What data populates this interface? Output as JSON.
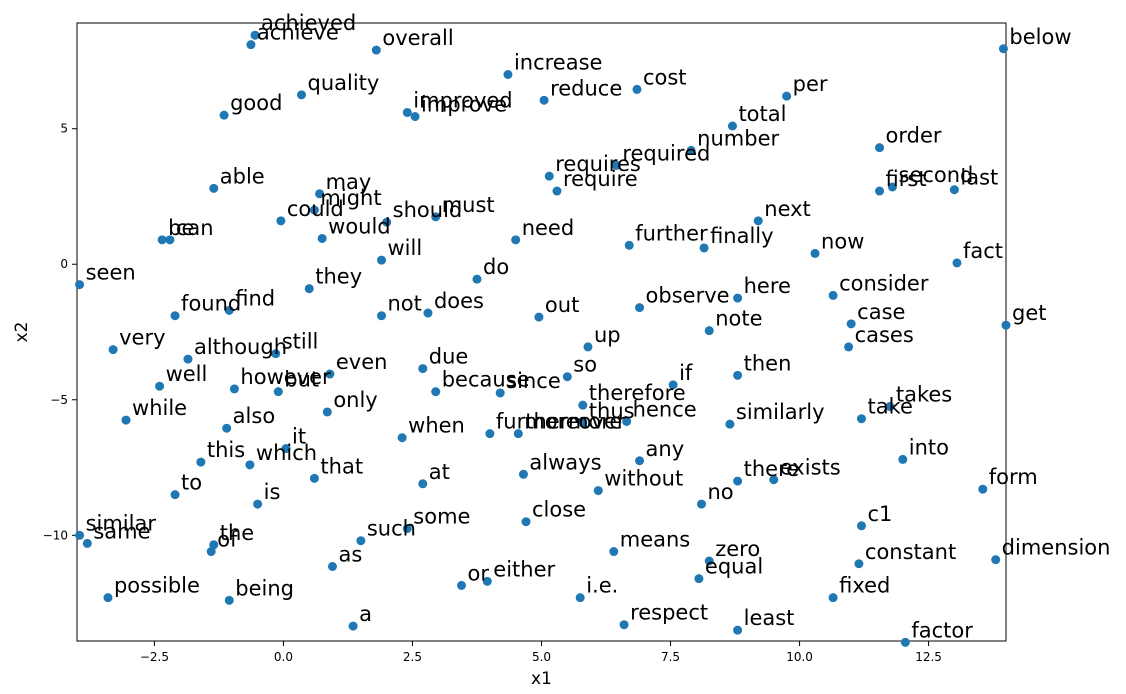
{
  "chart_data": {
    "type": "scatter",
    "title": "",
    "xlabel": "x1",
    "ylabel": "x2",
    "xlim": [
      -4.0,
      14.0
    ],
    "ylim": [
      -13.9,
      8.9
    ],
    "xticks": [
      -2.5,
      0.0,
      2.5,
      5.0,
      7.5,
      10.0,
      12.5
    ],
    "xtick_labels": [
      "−2.5",
      "0.0",
      "2.5",
      "5.0",
      "7.5",
      "10.0",
      "12.5"
    ],
    "yticks": [
      -10,
      -5,
      0,
      5
    ],
    "ytick_labels": [
      "−10",
      "−5",
      "0",
      "5"
    ],
    "grid": false,
    "point_color": "#1f77b4",
    "points": [
      {
        "label": "achieved",
        "x": -0.55,
        "y": 8.45
      },
      {
        "label": "achieve",
        "x": -0.63,
        "y": 8.1
      },
      {
        "label": "overall",
        "x": 1.8,
        "y": 7.9
      },
      {
        "label": "increase",
        "x": 4.35,
        "y": 7.0
      },
      {
        "label": "cost",
        "x": 6.85,
        "y": 6.45
      },
      {
        "label": "below",
        "x": 13.95,
        "y": 7.95
      },
      {
        "label": "per",
        "x": 9.75,
        "y": 6.2
      },
      {
        "label": "quality",
        "x": 0.35,
        "y": 6.25
      },
      {
        "label": "reduce",
        "x": 5.05,
        "y": 6.05
      },
      {
        "label": "good",
        "x": -1.15,
        "y": 5.5
      },
      {
        "label": "improved",
        "x": 2.4,
        "y": 5.6
      },
      {
        "label": "improve",
        "x": 2.55,
        "y": 5.45
      },
      {
        "label": "total",
        "x": 8.7,
        "y": 5.1
      },
      {
        "label": "number",
        "x": 7.9,
        "y": 4.2
      },
      {
        "label": "order",
        "x": 11.55,
        "y": 4.3
      },
      {
        "label": "required",
        "x": 6.45,
        "y": 3.65
      },
      {
        "label": "requires",
        "x": 5.15,
        "y": 3.25
      },
      {
        "label": "require",
        "x": 5.3,
        "y": 2.7
      },
      {
        "label": "first",
        "x": 11.55,
        "y": 2.7
      },
      {
        "label": "second",
        "x": 11.8,
        "y": 2.85
      },
      {
        "label": "last",
        "x": 13.0,
        "y": 2.75
      },
      {
        "label": "able",
        "x": -1.35,
        "y": 2.8
      },
      {
        "label": "may",
        "x": 0.7,
        "y": 2.6
      },
      {
        "label": "might",
        "x": 0.6,
        "y": 2.0
      },
      {
        "label": "could",
        "x": -0.05,
        "y": 1.6
      },
      {
        "label": "should",
        "x": 2.0,
        "y": 1.55
      },
      {
        "label": "must",
        "x": 2.95,
        "y": 1.75
      },
      {
        "label": "next",
        "x": 9.2,
        "y": 1.6
      },
      {
        "label": "would",
        "x": 0.75,
        "y": 0.95
      },
      {
        "label": "be",
        "x": -2.35,
        "y": 0.9
      },
      {
        "label": "can",
        "x": -2.2,
        "y": 0.9
      },
      {
        "label": "need",
        "x": 4.5,
        "y": 0.9
      },
      {
        "label": "further",
        "x": 6.7,
        "y": 0.7
      },
      {
        "label": "finally",
        "x": 8.15,
        "y": 0.6
      },
      {
        "label": "now",
        "x": 10.3,
        "y": 0.4
      },
      {
        "label": "fact",
        "x": 13.05,
        "y": 0.05
      },
      {
        "label": "will",
        "x": 1.9,
        "y": 0.15
      },
      {
        "label": "do",
        "x": 3.75,
        "y": -0.55
      },
      {
        "label": "seen",
        "x": -3.95,
        "y": -0.75
      },
      {
        "label": "they",
        "x": 0.5,
        "y": -0.9
      },
      {
        "label": "consider",
        "x": 10.65,
        "y": -1.15
      },
      {
        "label": "here",
        "x": 8.8,
        "y": -1.25
      },
      {
        "label": "found",
        "x": -2.1,
        "y": -1.9
      },
      {
        "label": "find",
        "x": -1.05,
        "y": -1.7
      },
      {
        "label": "not",
        "x": 1.9,
        "y": -1.9
      },
      {
        "label": "does",
        "x": 2.8,
        "y": -1.8
      },
      {
        "label": "out",
        "x": 4.95,
        "y": -1.95
      },
      {
        "label": "observe",
        "x": 6.9,
        "y": -1.6
      },
      {
        "label": "case",
        "x": 11.0,
        "y": -2.2
      },
      {
        "label": "get",
        "x": 14.0,
        "y": -2.25
      },
      {
        "label": "note",
        "x": 8.25,
        "y": -2.45
      },
      {
        "label": "cases",
        "x": 10.95,
        "y": -3.05
      },
      {
        "label": "up",
        "x": 5.9,
        "y": -3.05
      },
      {
        "label": "very",
        "x": -3.3,
        "y": -3.15
      },
      {
        "label": "still",
        "x": -0.15,
        "y": -3.3
      },
      {
        "label": "although",
        "x": -1.85,
        "y": -3.5
      },
      {
        "label": "due",
        "x": 2.7,
        "y": -3.85
      },
      {
        "label": "even",
        "x": 0.9,
        "y": -4.05
      },
      {
        "label": "so",
        "x": 5.5,
        "y": -4.15
      },
      {
        "label": "then",
        "x": 8.8,
        "y": -4.1
      },
      {
        "label": "if",
        "x": 7.55,
        "y": -4.45
      },
      {
        "label": "well",
        "x": -2.4,
        "y": -4.5
      },
      {
        "label": "however",
        "x": -0.95,
        "y": -4.6
      },
      {
        "label": "but",
        "x": -0.1,
        "y": -4.7
      },
      {
        "label": "because",
        "x": 2.95,
        "y": -4.7
      },
      {
        "label": "since",
        "x": 4.2,
        "y": -4.75
      },
      {
        "label": "therefore",
        "x": 5.8,
        "y": -5.2
      },
      {
        "label": "takes",
        "x": 11.75,
        "y": -5.25
      },
      {
        "label": "only",
        "x": 0.85,
        "y": -5.45
      },
      {
        "label": "while",
        "x": -3.05,
        "y": -5.75
      },
      {
        "label": "take",
        "x": 11.2,
        "y": -5.7
      },
      {
        "label": "thus",
        "x": 5.8,
        "y": -5.85
      },
      {
        "label": "hence",
        "x": 6.65,
        "y": -5.8
      },
      {
        "label": "similarly",
        "x": 8.65,
        "y": -5.9
      },
      {
        "label": "also",
        "x": -1.1,
        "y": -6.05
      },
      {
        "label": "furthermore",
        "x": 4.0,
        "y": -6.25
      },
      {
        "label": "moreover",
        "x": 4.55,
        "y": -6.25
      },
      {
        "label": "when",
        "x": 2.3,
        "y": -6.4
      },
      {
        "label": "it",
        "x": 0.05,
        "y": -6.8
      },
      {
        "label": "this",
        "x": -1.6,
        "y": -7.3
      },
      {
        "label": "which",
        "x": -0.65,
        "y": -7.4
      },
      {
        "label": "any",
        "x": 6.9,
        "y": -7.25
      },
      {
        "label": "into",
        "x": 12.0,
        "y": -7.2
      },
      {
        "label": "always",
        "x": 4.65,
        "y": -7.75
      },
      {
        "label": "that",
        "x": 0.6,
        "y": -7.9
      },
      {
        "label": "at",
        "x": 2.7,
        "y": -8.1
      },
      {
        "label": "there",
        "x": 8.8,
        "y": -8.0
      },
      {
        "label": "exists",
        "x": 9.5,
        "y": -7.95
      },
      {
        "label": "to",
        "x": -2.1,
        "y": -8.5
      },
      {
        "label": "without",
        "x": 6.1,
        "y": -8.35
      },
      {
        "label": "form",
        "x": 13.55,
        "y": -8.3
      },
      {
        "label": "is",
        "x": -0.5,
        "y": -8.85
      },
      {
        "label": "no",
        "x": 8.1,
        "y": -8.85
      },
      {
        "label": "close",
        "x": 4.7,
        "y": -9.5
      },
      {
        "label": "c1",
        "x": 11.2,
        "y": -9.65
      },
      {
        "label": "some",
        "x": 2.4,
        "y": -9.75
      },
      {
        "label": "similar",
        "x": -3.95,
        "y": -10.0
      },
      {
        "label": "same",
        "x": -3.8,
        "y": -10.3
      },
      {
        "label": "the",
        "x": -1.35,
        "y": -10.35
      },
      {
        "label": "of",
        "x": -1.4,
        "y": -10.6
      },
      {
        "label": "such",
        "x": 1.5,
        "y": -10.2
      },
      {
        "label": "means",
        "x": 6.4,
        "y": -10.6
      },
      {
        "label": "as",
        "x": 0.95,
        "y": -11.15
      },
      {
        "label": "zero",
        "x": 8.25,
        "y": -10.95
      },
      {
        "label": "constant",
        "x": 11.15,
        "y": -11.05
      },
      {
        "label": "dimension",
        "x": 13.8,
        "y": -10.9
      },
      {
        "label": "equal",
        "x": 8.05,
        "y": -11.6
      },
      {
        "label": "or",
        "x": 3.45,
        "y": -11.85
      },
      {
        "label": "either",
        "x": 3.95,
        "y": -11.7
      },
      {
        "label": "possible",
        "x": -3.4,
        "y": -12.3
      },
      {
        "label": "being",
        "x": -1.05,
        "y": -12.4
      },
      {
        "label": "i.e.",
        "x": 5.75,
        "y": -12.3
      },
      {
        "label": "fixed",
        "x": 10.65,
        "y": -12.3
      },
      {
        "label": "a",
        "x": 1.35,
        "y": -13.35
      },
      {
        "label": "respect",
        "x": 6.6,
        "y": -13.3
      },
      {
        "label": "least",
        "x": 8.8,
        "y": -13.5
      },
      {
        "label": "factor",
        "x": 12.05,
        "y": -13.95
      }
    ]
  }
}
